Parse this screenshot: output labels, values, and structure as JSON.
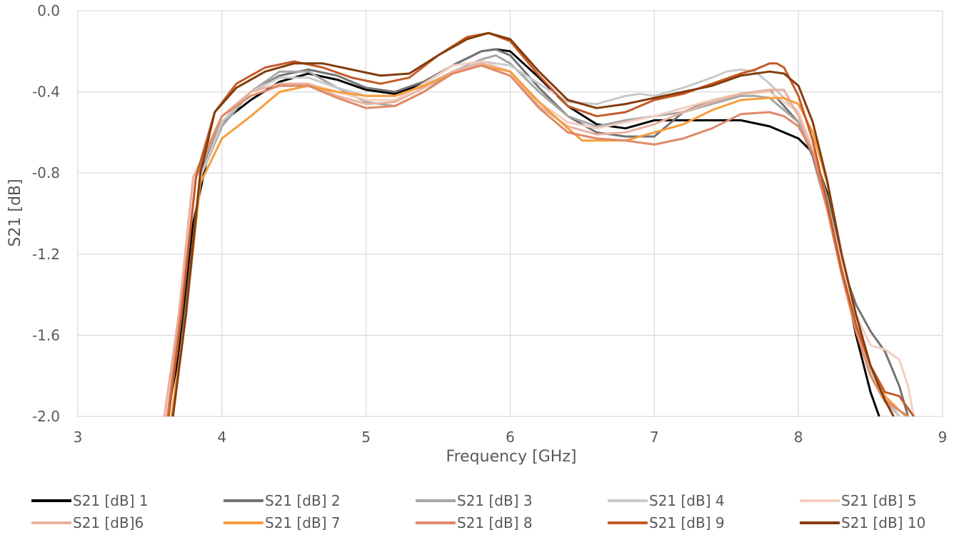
{
  "chart_data": {
    "type": "line",
    "xlabel": "Frequency [GHz]",
    "ylabel": "S21 [dB]",
    "xlim": [
      3,
      9
    ],
    "ylim": [
      -2.0,
      0.0
    ],
    "x_ticks": [
      "3",
      "4",
      "5",
      "6",
      "7",
      "8",
      "9"
    ],
    "y_ticks": [
      "0.0",
      "-0.4",
      "-0.8",
      "-1.2",
      "-1.6",
      "-2.0"
    ],
    "grid": true,
    "legend_position": "bottom",
    "series": [
      {
        "name": "S21 [dB] 1",
        "color": "#000000",
        "x": [
          3.62,
          3.7,
          3.8,
          3.9,
          4.0,
          4.2,
          4.4,
          4.6,
          4.8,
          5.0,
          5.2,
          5.4,
          5.6,
          5.8,
          5.9,
          6.0,
          6.2,
          6.4,
          6.6,
          6.8,
          7.0,
          7.2,
          7.4,
          7.6,
          7.8,
          8.0,
          8.1,
          8.2,
          8.3,
          8.4,
          8.5,
          8.56
        ],
        "y": [
          -2.0,
          -1.7,
          -1.05,
          -0.72,
          -0.55,
          -0.44,
          -0.35,
          -0.31,
          -0.34,
          -0.39,
          -0.41,
          -0.36,
          -0.27,
          -0.2,
          -0.19,
          -0.2,
          -0.33,
          -0.47,
          -0.56,
          -0.58,
          -0.54,
          -0.54,
          -0.54,
          -0.54,
          -0.57,
          -0.63,
          -0.7,
          -0.9,
          -1.25,
          -1.6,
          -1.88,
          -2.0
        ]
      },
      {
        "name": "S21 [dB] 2",
        "color": "#737373",
        "x": [
          3.66,
          3.75,
          3.85,
          4.0,
          4.2,
          4.4,
          4.6,
          4.8,
          5.0,
          5.2,
          5.4,
          5.6,
          5.8,
          5.9,
          6.0,
          6.2,
          6.4,
          6.6,
          6.8,
          7.0,
          7.2,
          7.4,
          7.6,
          7.8,
          8.0,
          8.1,
          8.2,
          8.3,
          8.4,
          8.5,
          8.6,
          8.7,
          8.76
        ],
        "y": [
          -2.0,
          -1.45,
          -0.8,
          -0.55,
          -0.4,
          -0.32,
          -0.29,
          -0.32,
          -0.38,
          -0.4,
          -0.35,
          -0.27,
          -0.2,
          -0.19,
          -0.22,
          -0.38,
          -0.52,
          -0.6,
          -0.62,
          -0.62,
          -0.5,
          -0.44,
          -0.41,
          -0.39,
          -0.55,
          -0.72,
          -0.98,
          -1.25,
          -1.45,
          -1.58,
          -1.68,
          -1.85,
          -2.0
        ]
      },
      {
        "name": "S21 [dB] 3",
        "color": "#a6a6a6",
        "x": [
          3.65,
          3.75,
          3.85,
          4.0,
          4.2,
          4.4,
          4.6,
          4.8,
          5.0,
          5.2,
          5.4,
          5.6,
          5.8,
          5.9,
          6.0,
          6.2,
          6.4,
          6.6,
          6.8,
          7.0,
          7.2,
          7.4,
          7.6,
          7.7,
          7.8,
          8.0,
          8.1,
          8.2,
          8.3,
          8.4,
          8.5,
          8.6,
          8.7
        ],
        "y": [
          -2.0,
          -1.5,
          -0.82,
          -0.57,
          -0.4,
          -0.3,
          -0.3,
          -0.38,
          -0.45,
          -0.47,
          -0.4,
          -0.3,
          -0.24,
          -0.22,
          -0.26,
          -0.4,
          -0.52,
          -0.57,
          -0.54,
          -0.52,
          -0.5,
          -0.46,
          -0.42,
          -0.42,
          -0.43,
          -0.55,
          -0.68,
          -0.92,
          -1.25,
          -1.55,
          -1.78,
          -1.92,
          -2.0
        ]
      },
      {
        "name": "S21 [dB] 4",
        "color": "#c9c9c9",
        "x": [
          3.65,
          3.75,
          3.85,
          4.0,
          4.2,
          4.4,
          4.6,
          4.8,
          5.0,
          5.2,
          5.4,
          5.6,
          5.8,
          6.0,
          6.2,
          6.4,
          6.6,
          6.8,
          6.9,
          7.0,
          7.2,
          7.4,
          7.5,
          7.6,
          7.7,
          7.8,
          8.0,
          8.1,
          8.2,
          8.3,
          8.4,
          8.5,
          8.6,
          8.7
        ],
        "y": [
          -2.0,
          -1.5,
          -0.82,
          -0.55,
          -0.4,
          -0.33,
          -0.33,
          -0.38,
          -0.42,
          -0.42,
          -0.37,
          -0.3,
          -0.25,
          -0.27,
          -0.36,
          -0.45,
          -0.46,
          -0.42,
          -0.41,
          -0.42,
          -0.38,
          -0.33,
          -0.3,
          -0.29,
          -0.3,
          -0.36,
          -0.5,
          -0.7,
          -0.95,
          -1.25,
          -1.55,
          -1.78,
          -1.9,
          -2.0
        ]
      },
      {
        "name": "S21 [dB] 5",
        "color": "#f2cfc0",
        "x": [
          3.6,
          3.7,
          3.8,
          4.0,
          4.2,
          4.4,
          4.6,
          4.8,
          5.0,
          5.2,
          5.4,
          5.6,
          5.8,
          6.0,
          6.2,
          6.4,
          6.6,
          6.8,
          7.0,
          7.2,
          7.4,
          7.6,
          7.8,
          8.0,
          8.1,
          8.2,
          8.3,
          8.4,
          8.5,
          8.6,
          8.7,
          8.76,
          8.8
        ],
        "y": [
          -2.0,
          -1.5,
          -0.82,
          -0.52,
          -0.4,
          -0.36,
          -0.36,
          -0.4,
          -0.44,
          -0.44,
          -0.36,
          -0.27,
          -0.25,
          -0.3,
          -0.45,
          -0.55,
          -0.58,
          -0.55,
          -0.52,
          -0.48,
          -0.44,
          -0.41,
          -0.4,
          -0.5,
          -0.68,
          -0.95,
          -1.25,
          -1.5,
          -1.65,
          -1.67,
          -1.72,
          -1.85,
          -2.0
        ]
      },
      {
        "name": "S21 [dB]6",
        "color": "#eab1a0",
        "x": [
          3.6,
          3.7,
          3.8,
          4.0,
          4.2,
          4.4,
          4.6,
          4.8,
          5.0,
          5.2,
          5.4,
          5.6,
          5.8,
          6.0,
          6.2,
          6.4,
          6.6,
          6.8,
          7.0,
          7.2,
          7.4,
          7.6,
          7.8,
          7.9,
          8.0,
          8.1,
          8.2,
          8.3,
          8.4,
          8.5,
          8.6,
          8.7,
          8.75
        ],
        "y": [
          -2.0,
          -1.5,
          -0.82,
          -0.52,
          -0.4,
          -0.36,
          -0.36,
          -0.42,
          -0.46,
          -0.45,
          -0.38,
          -0.3,
          -0.26,
          -0.3,
          -0.47,
          -0.57,
          -0.61,
          -0.6,
          -0.56,
          -0.5,
          -0.45,
          -0.41,
          -0.39,
          -0.39,
          -0.52,
          -0.7,
          -0.98,
          -1.3,
          -1.58,
          -1.8,
          -1.93,
          -1.97,
          -2.0
        ]
      },
      {
        "name": "S21 [dB] 7",
        "color": "#f79d3c",
        "x": [
          3.65,
          3.75,
          3.85,
          4.0,
          4.2,
          4.4,
          4.6,
          4.8,
          5.0,
          5.2,
          5.4,
          5.6,
          5.8,
          6.0,
          6.2,
          6.4,
          6.5,
          6.6,
          6.8,
          7.0,
          7.2,
          7.4,
          7.6,
          7.8,
          7.9,
          8.0,
          8.1,
          8.2,
          8.3,
          8.4,
          8.5,
          8.6,
          8.7,
          8.75
        ],
        "y": [
          -2.0,
          -1.5,
          -0.85,
          -0.63,
          -0.52,
          -0.4,
          -0.37,
          -0.4,
          -0.42,
          -0.42,
          -0.37,
          -0.31,
          -0.27,
          -0.3,
          -0.45,
          -0.58,
          -0.64,
          -0.64,
          -0.64,
          -0.6,
          -0.56,
          -0.49,
          -0.44,
          -0.43,
          -0.43,
          -0.46,
          -0.6,
          -0.85,
          -1.2,
          -1.5,
          -1.75,
          -1.9,
          -1.97,
          -2.0
        ]
      },
      {
        "name": "S21 [dB] 8",
        "color": "#e08a68",
        "x": [
          3.62,
          3.72,
          3.82,
          4.0,
          4.2,
          4.4,
          4.6,
          4.8,
          5.0,
          5.2,
          5.4,
          5.6,
          5.8,
          6.0,
          6.2,
          6.4,
          6.6,
          6.8,
          7.0,
          7.2,
          7.4,
          7.6,
          7.8,
          7.9,
          8.0,
          8.1,
          8.2,
          8.3,
          8.4,
          8.5,
          8.6,
          8.7,
          8.76
        ],
        "y": [
          -2.0,
          -1.45,
          -0.82,
          -0.52,
          -0.42,
          -0.37,
          -0.37,
          -0.43,
          -0.48,
          -0.47,
          -0.4,
          -0.31,
          -0.27,
          -0.32,
          -0.48,
          -0.6,
          -0.63,
          -0.64,
          -0.66,
          -0.63,
          -0.58,
          -0.51,
          -0.5,
          -0.52,
          -0.57,
          -0.7,
          -0.98,
          -1.3,
          -1.58,
          -1.8,
          -1.92,
          -1.97,
          -2.0
        ]
      },
      {
        "name": "S21 [dB] 9",
        "color": "#c55a28",
        "x": [
          3.63,
          3.72,
          3.82,
          3.95,
          4.1,
          4.3,
          4.5,
          4.7,
          4.9,
          5.1,
          5.3,
          5.5,
          5.7,
          5.85,
          6.0,
          6.2,
          6.4,
          6.6,
          6.8,
          7.0,
          7.2,
          7.4,
          7.6,
          7.7,
          7.8,
          7.85,
          7.9,
          8.0,
          8.1,
          8.2,
          8.3,
          8.4,
          8.5,
          8.6,
          8.7,
          8.8
        ],
        "y": [
          -2.0,
          -1.5,
          -0.82,
          -0.5,
          -0.36,
          -0.28,
          -0.25,
          -0.28,
          -0.33,
          -0.36,
          -0.33,
          -0.22,
          -0.13,
          -0.11,
          -0.15,
          -0.32,
          -0.47,
          -0.52,
          -0.5,
          -0.44,
          -0.41,
          -0.36,
          -0.31,
          -0.29,
          -0.26,
          -0.26,
          -0.28,
          -0.42,
          -0.64,
          -0.95,
          -1.28,
          -1.55,
          -1.75,
          -1.88,
          -1.9,
          -2.0
        ]
      },
      {
        "name": "S21 [dB] 10",
        "color": "#843c0c",
        "x": [
          3.66,
          3.75,
          3.85,
          3.95,
          4.1,
          4.3,
          4.5,
          4.7,
          4.9,
          5.1,
          5.3,
          5.5,
          5.7,
          5.85,
          6.0,
          6.2,
          6.4,
          6.6,
          6.8,
          7.0,
          7.2,
          7.4,
          7.6,
          7.8,
          7.9,
          8.0,
          8.1,
          8.2,
          8.3,
          8.4,
          8.5,
          8.6,
          8.66
        ],
        "y": [
          -2.0,
          -1.5,
          -0.8,
          -0.5,
          -0.38,
          -0.3,
          -0.26,
          -0.26,
          -0.29,
          -0.32,
          -0.31,
          -0.22,
          -0.14,
          -0.11,
          -0.14,
          -0.3,
          -0.44,
          -0.48,
          -0.46,
          -0.43,
          -0.4,
          -0.37,
          -0.32,
          -0.3,
          -0.31,
          -0.37,
          -0.55,
          -0.84,
          -1.2,
          -1.5,
          -1.75,
          -1.92,
          -2.0
        ]
      }
    ]
  }
}
